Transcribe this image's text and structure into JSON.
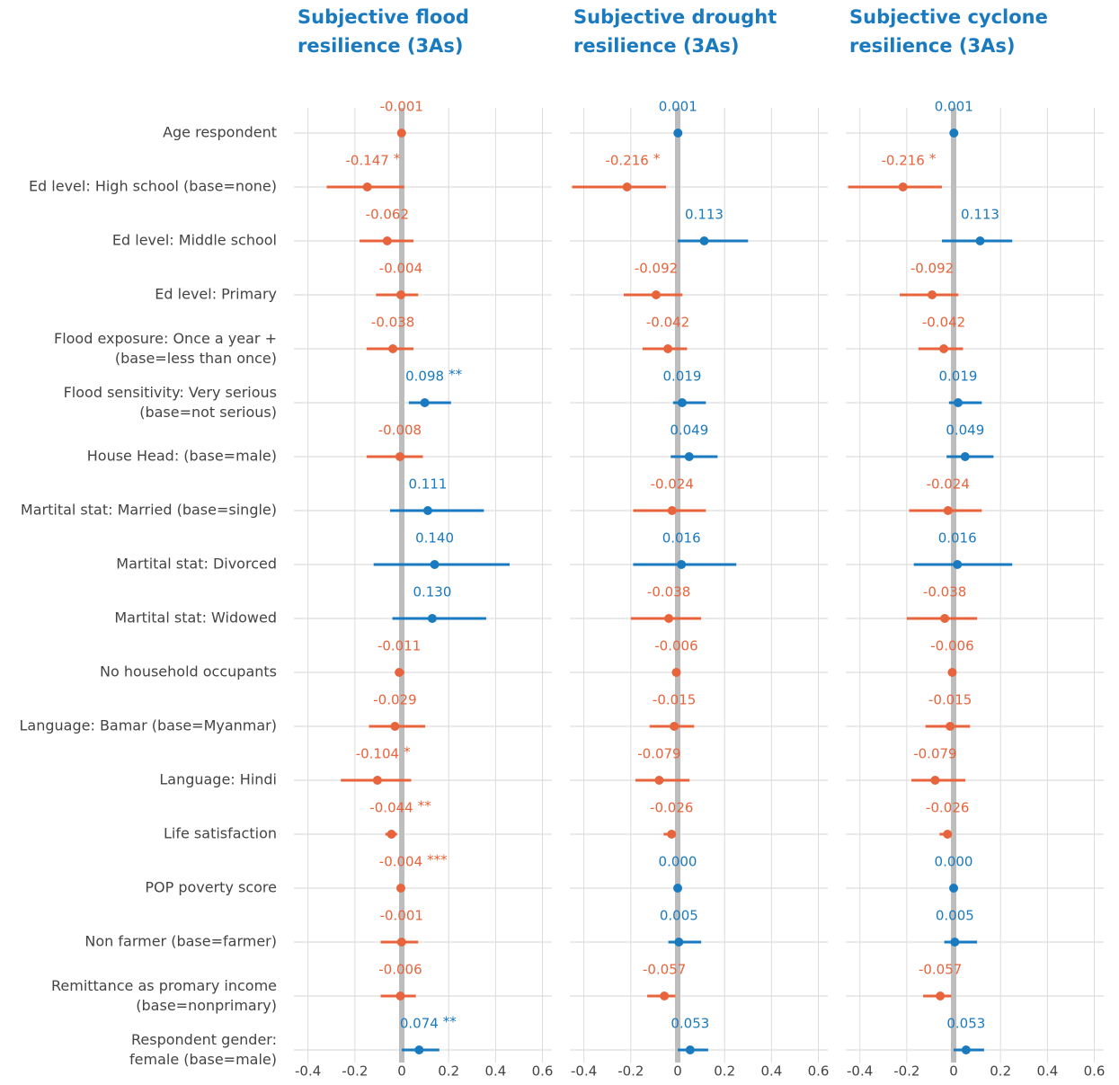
{
  "chart_data": [
    {
      "type": "dot-whisker",
      "title": "Subjective flood\nresilience (3As)",
      "categories": [
        "Age respondent",
        "Ed level: High school (base=none)",
        "Ed level: Middle school",
        "Ed level: Primary",
        "Flood exposure: Once a year +\n(base=less than once)",
        "Flood sensitivity: Very serious\n(base=not serious)",
        "House Head: (base=male)",
        "Martital stat: Married (base=single)",
        "Martital stat: Divorced",
        "Martital stat: Widowed",
        "No household occupants",
        "Language: Bamar (base=Myanmar)",
        "Language: Hindi",
        "Life satisfaction",
        "POP poverty score",
        "Non farmer (base=farmer)",
        "Remittance as promary income\n(base=nonprimary)",
        "Respondent gender:\nfemale (base=male)"
      ],
      "values": [
        -0.001,
        -0.147,
        -0.062,
        -0.004,
        -0.038,
        0.098,
        -0.008,
        0.111,
        0.14,
        0.13,
        -0.011,
        -0.029,
        -0.104,
        -0.044,
        -0.004,
        -0.001,
        -0.006,
        0.074
      ],
      "value_labels": [
        "-0.001",
        "-0.147",
        "-0.062",
        "-0.004",
        "-0.038",
        "0.098",
        "-0.008",
        "0.111",
        "0.140",
        "0.130",
        "-0.011",
        "-0.029",
        "-0.104",
        "-0.044",
        "-0.004",
        "-0.001",
        "-0.006",
        "0.074"
      ],
      "lower": [
        -0.01,
        -0.32,
        -0.18,
        -0.11,
        -0.15,
        0.03,
        -0.15,
        -0.05,
        -0.12,
        -0.04,
        -0.01,
        -0.14,
        -0.26,
        -0.07,
        -0.01,
        -0.09,
        -0.09,
        0.0
      ],
      "upper": [
        0.01,
        0.01,
        0.05,
        0.07,
        0.05,
        0.21,
        0.09,
        0.35,
        0.46,
        0.36,
        0.01,
        0.1,
        0.04,
        -0.02,
        0.0,
        0.07,
        0.06,
        0.16
      ],
      "significance": [
        null,
        "*",
        null,
        null,
        null,
        "**",
        null,
        null,
        null,
        null,
        null,
        null,
        "*",
        "**",
        "***",
        null,
        null,
        "**"
      ],
      "xlim": [
        -0.46,
        0.64
      ],
      "xticks": [
        -0.4,
        -0.2,
        0,
        0.2,
        0.4,
        0.6
      ],
      "positive_color": "#1a7abf",
      "negative_color": "#e8643c",
      "grid": true
    },
    {
      "type": "dot-whisker",
      "title": "Subjective drought\nresilience (3As)",
      "values": [
        0.001,
        -0.216,
        0.113,
        -0.092,
        -0.042,
        0.019,
        0.049,
        -0.024,
        0.016,
        -0.038,
        -0.006,
        -0.015,
        -0.079,
        -0.026,
        0.0,
        0.005,
        -0.057,
        0.053
      ],
      "value_labels": [
        "0.001",
        "-0.216",
        "0.113",
        "-0.092",
        "-0.042",
        "0.019",
        "0.049",
        "-0.024",
        "0.016",
        "-0.038",
        "-0.006",
        "-0.015",
        "-0.079",
        "-0.026",
        "0.000",
        "0.005",
        "-0.057",
        "0.053"
      ],
      "lower": [
        0.0,
        -0.45,
        0.0,
        -0.23,
        -0.15,
        -0.02,
        -0.03,
        -0.19,
        -0.19,
        -0.2,
        -0.01,
        -0.12,
        -0.18,
        -0.06,
        0.0,
        -0.04,
        -0.13,
        0.0
      ],
      "upper": [
        0.01,
        -0.05,
        0.3,
        0.02,
        0.04,
        0.12,
        0.17,
        0.12,
        0.25,
        0.1,
        0.0,
        0.07,
        0.05,
        -0.01,
        0.0,
        0.1,
        -0.01,
        0.13
      ],
      "significance": [
        null,
        "*",
        null,
        null,
        null,
        null,
        null,
        null,
        null,
        null,
        null,
        null,
        null,
        null,
        null,
        null,
        null,
        null
      ],
      "xlim": [
        -0.46,
        0.64
      ],
      "xticks": [
        -0.4,
        -0.2,
        0,
        0.2,
        0.4,
        0.6
      ],
      "positive_color": "#1a7abf",
      "negative_color": "#e8643c",
      "grid": true
    },
    {
      "type": "dot-whisker",
      "title": "Subjective cyclone\nresilience (3As)",
      "values": [
        0.001,
        -0.216,
        0.113,
        -0.092,
        -0.042,
        0.019,
        0.049,
        -0.024,
        0.016,
        -0.038,
        -0.006,
        -0.015,
        -0.079,
        -0.026,
        0.0,
        0.005,
        -0.057,
        0.053
      ],
      "value_labels": [
        "0.001",
        "-0.216",
        "0.113",
        "-0.092",
        "-0.042",
        "0.019",
        "0.049",
        "-0.024",
        "0.016",
        "-0.038",
        "-0.006",
        "-0.015",
        "-0.079",
        "-0.026",
        "0.000",
        "0.005",
        "-0.057",
        "0.053"
      ],
      "lower": [
        0.0,
        -0.45,
        -0.05,
        -0.23,
        -0.15,
        -0.02,
        -0.03,
        -0.19,
        -0.17,
        -0.2,
        -0.01,
        -0.12,
        -0.18,
        -0.06,
        0.0,
        -0.04,
        -0.13,
        0.0
      ],
      "upper": [
        0.01,
        -0.05,
        0.25,
        0.02,
        0.04,
        0.12,
        0.17,
        0.12,
        0.25,
        0.1,
        0.0,
        0.07,
        0.05,
        -0.01,
        0.0,
        0.1,
        -0.01,
        0.13
      ],
      "significance": [
        null,
        "*",
        null,
        null,
        null,
        null,
        null,
        null,
        null,
        null,
        null,
        null,
        null,
        null,
        null,
        null,
        null,
        null
      ],
      "xlim": [
        -0.46,
        0.64
      ],
      "xticks": [
        -0.4,
        -0.2,
        0,
        0.2,
        0.4,
        0.6
      ],
      "positive_color": "#1a7abf",
      "negative_color": "#e8643c",
      "grid": true
    }
  ]
}
